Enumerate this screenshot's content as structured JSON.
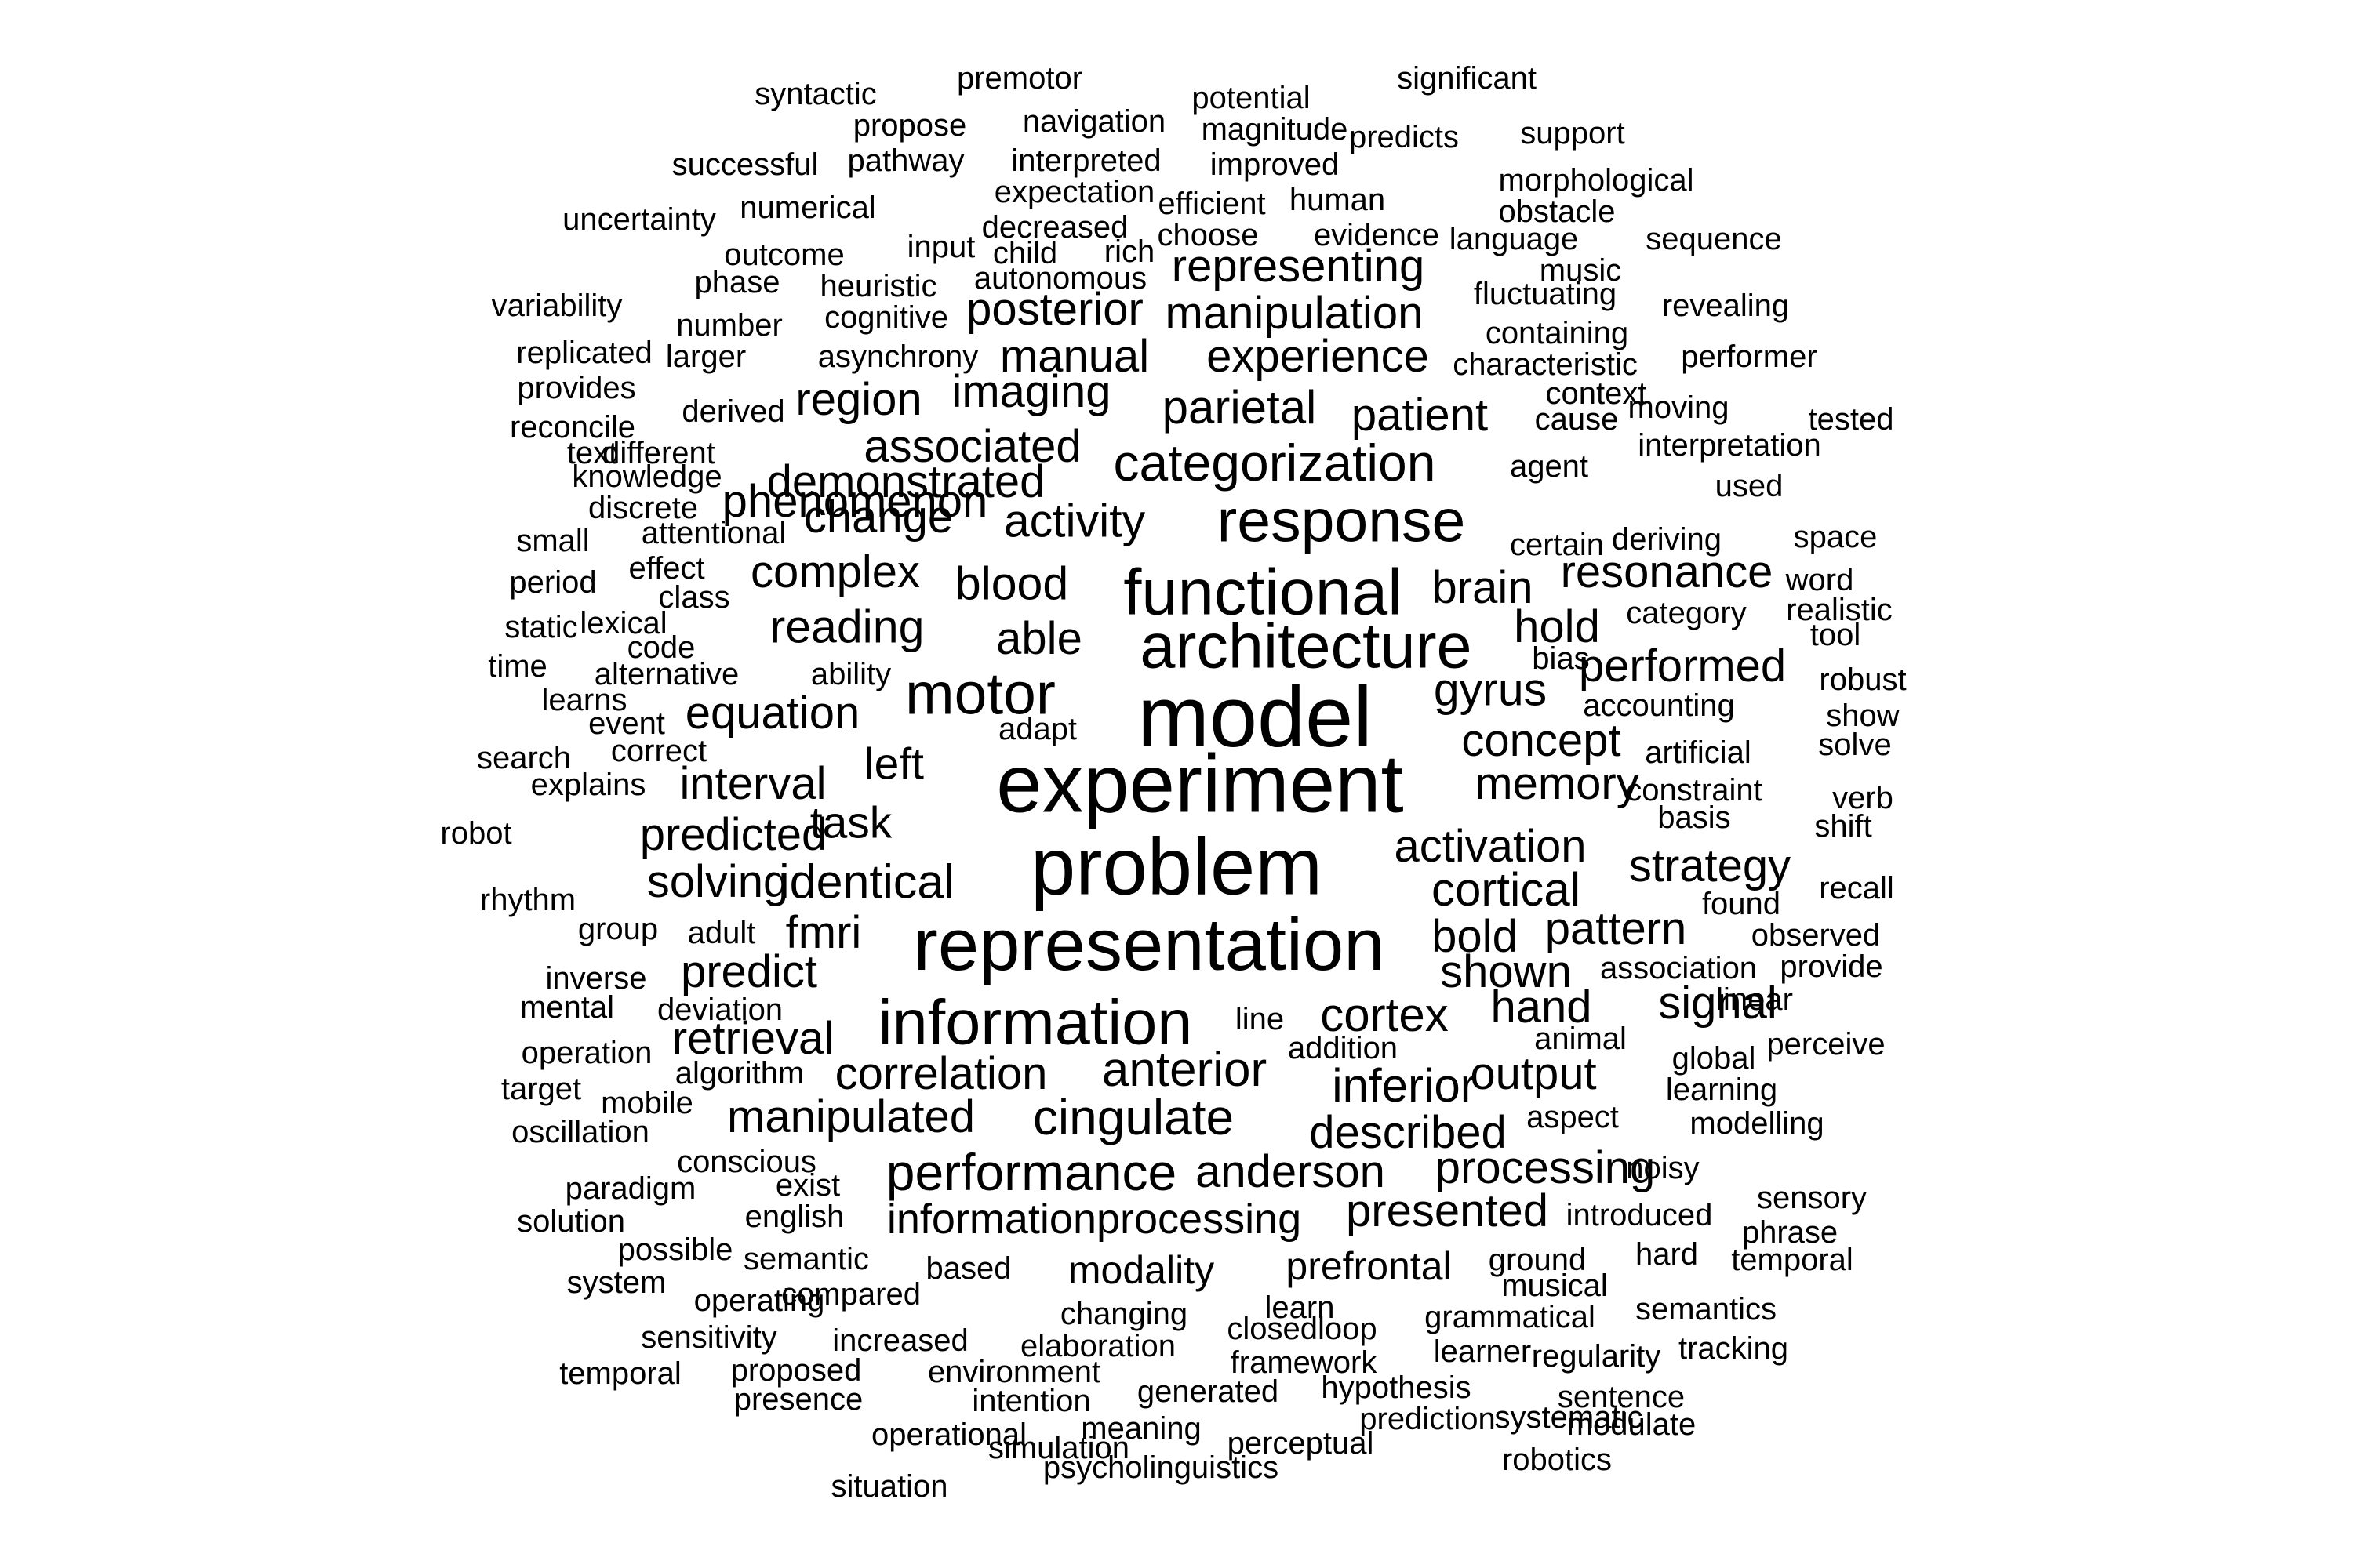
{
  "text_color": "#000000",
  "background": "#ffffff",
  "words": [
    {
      "text": "model",
      "weight": 1.0
    },
    {
      "text": "experiment",
      "weight": 0.95
    },
    {
      "text": "problem",
      "weight": 0.94
    },
    {
      "text": "representation",
      "weight": 0.88
    },
    {
      "text": "functional",
      "weight": 0.78
    },
    {
      "text": "architecture",
      "weight": 0.76
    },
    {
      "text": "information",
      "weight": 0.76
    },
    {
      "text": "response",
      "weight": 0.72
    },
    {
      "text": "motor",
      "weight": 0.7
    },
    {
      "text": "categorization",
      "weight": 0.62
    },
    {
      "text": "performance",
      "weight": 0.62
    },
    {
      "text": "cingulate",
      "weight": 0.6
    },
    {
      "text": "anterior",
      "weight": 0.58
    },
    {
      "text": "identical",
      "weight": 0.57
    },
    {
      "text": "parietal",
      "weight": 0.56
    },
    {
      "text": "cortical",
      "weight": 0.56
    },
    {
      "text": "cortex",
      "weight": 0.56
    },
    {
      "text": "inferior",
      "weight": 0.56
    },
    {
      "text": "gyrus",
      "weight": 0.55
    },
    {
      "text": "activity",
      "weight": 0.55
    },
    {
      "text": "reading",
      "weight": 0.55
    },
    {
      "text": "blood",
      "weight": 0.55
    },
    {
      "text": "memory",
      "weight": 0.54
    },
    {
      "text": "able",
      "weight": 0.54
    },
    {
      "text": "left",
      "weight": 0.53
    },
    {
      "text": "task",
      "weight": 0.53
    },
    {
      "text": "informationprocessing",
      "weight": 0.5
    },
    {
      "text": "modality",
      "weight": 0.47
    },
    {
      "text": "prefrontal",
      "weight": 0.47
    },
    {
      "text": "manipulation",
      "weight": 0.44
    },
    {
      "text": "experience",
      "weight": 0.44
    },
    {
      "text": "representing",
      "weight": 0.44
    },
    {
      "text": "posterior",
      "weight": 0.44
    },
    {
      "text": "imaging",
      "weight": 0.44
    },
    {
      "text": "manual",
      "weight": 0.44
    },
    {
      "text": "phenomenon",
      "weight": 0.44
    },
    {
      "text": "patient",
      "weight": 0.44
    },
    {
      "text": "brain",
      "weight": 0.44
    },
    {
      "text": "resonance",
      "weight": 0.44
    },
    {
      "text": "hold",
      "weight": 0.44
    },
    {
      "text": "performed",
      "weight": 0.44
    },
    {
      "text": "concept",
      "weight": 0.44
    },
    {
      "text": "change",
      "weight": 0.44
    },
    {
      "text": "demonstrated",
      "weight": 0.44
    },
    {
      "text": "associated",
      "weight": 0.44
    },
    {
      "text": "region",
      "weight": 0.44
    },
    {
      "text": "complex",
      "weight": 0.44
    },
    {
      "text": "equation",
      "weight": 0.44
    },
    {
      "text": "interval",
      "weight": 0.44
    },
    {
      "text": "predicted",
      "weight": 0.44
    },
    {
      "text": "solving",
      "weight": 0.44
    },
    {
      "text": "fmri",
      "weight": 0.44
    },
    {
      "text": "predict",
      "weight": 0.44
    },
    {
      "text": "retrieval",
      "weight": 0.44
    },
    {
      "text": "correlation",
      "weight": 0.44
    },
    {
      "text": "manipulated",
      "weight": 0.44
    },
    {
      "text": "activation",
      "weight": 0.44
    },
    {
      "text": "strategy",
      "weight": 0.44
    },
    {
      "text": "bold",
      "weight": 0.44
    },
    {
      "text": "pattern",
      "weight": 0.44
    },
    {
      "text": "shown",
      "weight": 0.44
    },
    {
      "text": "hand",
      "weight": 0.44
    },
    {
      "text": "signal",
      "weight": 0.44
    },
    {
      "text": "output",
      "weight": 0.44
    },
    {
      "text": "described",
      "weight": 0.44
    },
    {
      "text": "anderson",
      "weight": 0.44
    },
    {
      "text": "processing",
      "weight": 0.44
    },
    {
      "text": "presented",
      "weight": 0.44
    },
    {
      "text": "syntactic",
      "weight": 0.3
    },
    {
      "text": "premotor",
      "weight": 0.3
    },
    {
      "text": "potential",
      "weight": 0.3
    },
    {
      "text": "significant",
      "weight": 0.3
    },
    {
      "text": "propose",
      "weight": 0.3
    },
    {
      "text": "navigation",
      "weight": 0.3
    },
    {
      "text": "magnitude",
      "weight": 0.3
    },
    {
      "text": "predicts",
      "weight": 0.3
    },
    {
      "text": "support",
      "weight": 0.3
    },
    {
      "text": "successful",
      "weight": 0.3
    },
    {
      "text": "pathway",
      "weight": 0.3
    },
    {
      "text": "interpreted",
      "weight": 0.3
    },
    {
      "text": "improved",
      "weight": 0.3
    },
    {
      "text": "morphological",
      "weight": 0.3
    },
    {
      "text": "numerical",
      "weight": 0.3
    },
    {
      "text": "expectation",
      "weight": 0.3
    },
    {
      "text": "efficient",
      "weight": 0.3
    },
    {
      "text": "human",
      "weight": 0.3
    },
    {
      "text": "obstacle",
      "weight": 0.3
    },
    {
      "text": "uncertainty",
      "weight": 0.3
    },
    {
      "text": "decreased",
      "weight": 0.3
    },
    {
      "text": "choose",
      "weight": 0.3
    },
    {
      "text": "evidence",
      "weight": 0.3
    },
    {
      "text": "language",
      "weight": 0.3
    },
    {
      "text": "sequence",
      "weight": 0.3
    },
    {
      "text": "outcome",
      "weight": 0.3
    },
    {
      "text": "input",
      "weight": 0.3
    },
    {
      "text": "child",
      "weight": 0.3
    },
    {
      "text": "rich",
      "weight": 0.3
    },
    {
      "text": "music",
      "weight": 0.3
    },
    {
      "text": "phase",
      "weight": 0.3
    },
    {
      "text": "heuristic",
      "weight": 0.3
    },
    {
      "text": "autonomous",
      "weight": 0.3
    },
    {
      "text": "fluctuating",
      "weight": 0.3
    },
    {
      "text": "revealing",
      "weight": 0.3
    },
    {
      "text": "variability",
      "weight": 0.3
    },
    {
      "text": "number",
      "weight": 0.3
    },
    {
      "text": "cognitive",
      "weight": 0.3
    },
    {
      "text": "containing",
      "weight": 0.3
    },
    {
      "text": "replicated",
      "weight": 0.3
    },
    {
      "text": "larger",
      "weight": 0.3
    },
    {
      "text": "asynchrony",
      "weight": 0.3
    },
    {
      "text": "characteristic",
      "weight": 0.3
    },
    {
      "text": "performer",
      "weight": 0.3
    },
    {
      "text": "provides",
      "weight": 0.3
    },
    {
      "text": "context",
      "weight": 0.3
    },
    {
      "text": "derived",
      "weight": 0.3
    },
    {
      "text": "moving",
      "weight": 0.3
    },
    {
      "text": "tested",
      "weight": 0.3
    },
    {
      "text": "reconcile",
      "weight": 0.3
    },
    {
      "text": "cause",
      "weight": 0.3
    },
    {
      "text": "interpretation",
      "weight": 0.3
    },
    {
      "text": "text",
      "weight": 0.3
    },
    {
      "text": "different",
      "weight": 0.3
    },
    {
      "text": "agent",
      "weight": 0.3
    },
    {
      "text": "knowledge",
      "weight": 0.3
    },
    {
      "text": "used",
      "weight": 0.3
    },
    {
      "text": "discrete",
      "weight": 0.3
    },
    {
      "text": "small",
      "weight": 0.3
    },
    {
      "text": "attentional",
      "weight": 0.3
    },
    {
      "text": "certain",
      "weight": 0.3
    },
    {
      "text": "deriving",
      "weight": 0.3
    },
    {
      "text": "space",
      "weight": 0.3
    },
    {
      "text": "period",
      "weight": 0.3
    },
    {
      "text": "effect",
      "weight": 0.3
    },
    {
      "text": "class",
      "weight": 0.3
    },
    {
      "text": "word",
      "weight": 0.3
    },
    {
      "text": "static",
      "weight": 0.3
    },
    {
      "text": "lexical",
      "weight": 0.3
    },
    {
      "text": "category",
      "weight": 0.3
    },
    {
      "text": "realistic",
      "weight": 0.3
    },
    {
      "text": "code",
      "weight": 0.3
    },
    {
      "text": "tool",
      "weight": 0.3
    },
    {
      "text": "time",
      "weight": 0.3
    },
    {
      "text": "alternative",
      "weight": 0.3
    },
    {
      "text": "ability",
      "weight": 0.3
    },
    {
      "text": "bias",
      "weight": 0.3
    },
    {
      "text": "robust",
      "weight": 0.3
    },
    {
      "text": "learns",
      "weight": 0.3
    },
    {
      "text": "accounting",
      "weight": 0.3
    },
    {
      "text": "show",
      "weight": 0.3
    },
    {
      "text": "event",
      "weight": 0.3
    },
    {
      "text": "adapt",
      "weight": 0.3
    },
    {
      "text": "solve",
      "weight": 0.3
    },
    {
      "text": "search",
      "weight": 0.3
    },
    {
      "text": "correct",
      "weight": 0.3
    },
    {
      "text": "artificial",
      "weight": 0.3
    },
    {
      "text": "explains",
      "weight": 0.3
    },
    {
      "text": "constraint",
      "weight": 0.3
    },
    {
      "text": "verb",
      "weight": 0.3
    },
    {
      "text": "robot",
      "weight": 0.3
    },
    {
      "text": "basis",
      "weight": 0.3
    },
    {
      "text": "shift",
      "weight": 0.3
    },
    {
      "text": "rhythm",
      "weight": 0.3
    },
    {
      "text": "recall",
      "weight": 0.3
    },
    {
      "text": "found",
      "weight": 0.3
    },
    {
      "text": "group",
      "weight": 0.3
    },
    {
      "text": "adult",
      "weight": 0.3
    },
    {
      "text": "observed",
      "weight": 0.3
    },
    {
      "text": "inverse",
      "weight": 0.3
    },
    {
      "text": "association",
      "weight": 0.3
    },
    {
      "text": "provide",
      "weight": 0.3
    },
    {
      "text": "mental",
      "weight": 0.3
    },
    {
      "text": "deviation",
      "weight": 0.3
    },
    {
      "text": "linear",
      "weight": 0.3
    },
    {
      "text": "line",
      "weight": 0.3
    },
    {
      "text": "animal",
      "weight": 0.3
    },
    {
      "text": "operation",
      "weight": 0.3
    },
    {
      "text": "addition",
      "weight": 0.3
    },
    {
      "text": "perceive",
      "weight": 0.3
    },
    {
      "text": "global",
      "weight": 0.3
    },
    {
      "text": "algorithm",
      "weight": 0.3
    },
    {
      "text": "target",
      "weight": 0.3
    },
    {
      "text": "learning",
      "weight": 0.3
    },
    {
      "text": "mobile",
      "weight": 0.3
    },
    {
      "text": "aspect",
      "weight": 0.3
    },
    {
      "text": "modelling",
      "weight": 0.3
    },
    {
      "text": "oscillation",
      "weight": 0.3
    },
    {
      "text": "conscious",
      "weight": 0.3
    },
    {
      "text": "noisy",
      "weight": 0.3
    },
    {
      "text": "paradigm",
      "weight": 0.3
    },
    {
      "text": "exist",
      "weight": 0.3
    },
    {
      "text": "sensory",
      "weight": 0.3
    },
    {
      "text": "solution",
      "weight": 0.3
    },
    {
      "text": "english",
      "weight": 0.3
    },
    {
      "text": "introduced",
      "weight": 0.3
    },
    {
      "text": "possible",
      "weight": 0.3
    },
    {
      "text": "semantic",
      "weight": 0.3
    },
    {
      "text": "ground",
      "weight": 0.3
    },
    {
      "text": "hard",
      "weight": 0.3
    },
    {
      "text": "phrase",
      "weight": 0.3
    },
    {
      "text": "temporal",
      "weight": 0.3
    },
    {
      "text": "system",
      "weight": 0.3
    },
    {
      "text": "based",
      "weight": 0.3
    },
    {
      "text": "musical",
      "weight": 0.3
    },
    {
      "text": "compared",
      "weight": 0.3
    },
    {
      "text": "operating",
      "weight": 0.3
    },
    {
      "text": "learn",
      "weight": 0.3
    },
    {
      "text": "semantics",
      "weight": 0.3
    },
    {
      "text": "changing",
      "weight": 0.3
    },
    {
      "text": "grammatical",
      "weight": 0.3
    },
    {
      "text": "sensitivity",
      "weight": 0.3
    },
    {
      "text": "closedloop",
      "weight": 0.3
    },
    {
      "text": "increased",
      "weight": 0.3
    },
    {
      "text": "tracking",
      "weight": 0.3
    },
    {
      "text": "elaboration",
      "weight": 0.3
    },
    {
      "text": "learner",
      "weight": 0.3
    },
    {
      "text": "regularity",
      "weight": 0.3
    },
    {
      "text": "temporal",
      "weight": 0.3
    },
    {
      "text": "proposed",
      "weight": 0.3
    },
    {
      "text": "framework",
      "weight": 0.3
    },
    {
      "text": "environment",
      "weight": 0.3
    },
    {
      "text": "hypothesis",
      "weight": 0.3
    },
    {
      "text": "sentence",
      "weight": 0.3
    },
    {
      "text": "presence",
      "weight": 0.3
    },
    {
      "text": "generated",
      "weight": 0.3
    },
    {
      "text": "intention",
      "weight": 0.3
    },
    {
      "text": "prediction",
      "weight": 0.3
    },
    {
      "text": "systematic",
      "weight": 0.3
    },
    {
      "text": "operational",
      "weight": 0.3
    },
    {
      "text": "meaning",
      "weight": 0.3
    },
    {
      "text": "modulate",
      "weight": 0.3
    },
    {
      "text": "simulation",
      "weight": 0.3
    },
    {
      "text": "perceptual",
      "weight": 0.3
    },
    {
      "text": "robotics",
      "weight": 0.3
    },
    {
      "text": "psycholinguistics",
      "weight": 0.3
    },
    {
      "text": "situation",
      "weight": 0.3
    }
  ]
}
